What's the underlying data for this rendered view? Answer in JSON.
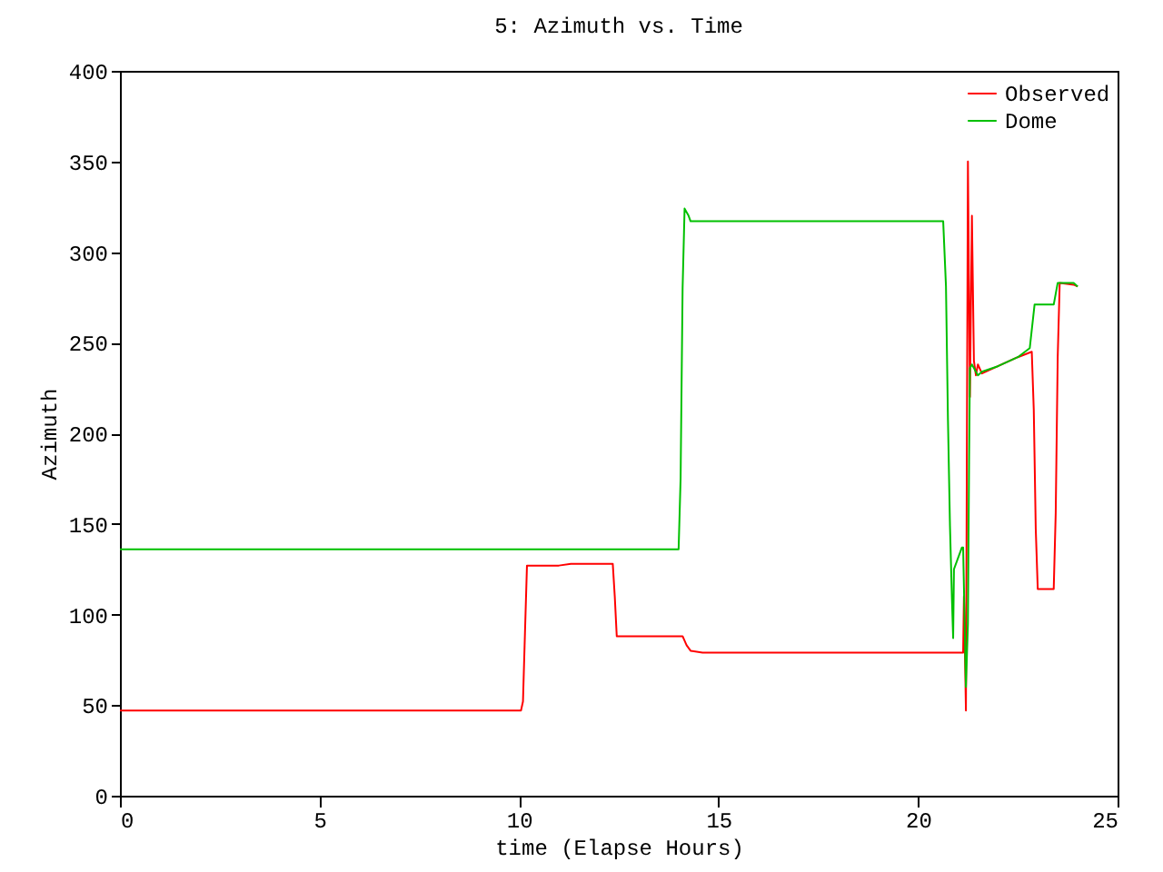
{
  "chart_data": {
    "type": "line",
    "title": "5: Azimuth vs. Time",
    "xlabel": "time (Elapse Hours)",
    "ylabel": "Azimuth",
    "xlim": [
      0,
      25
    ],
    "ylim": [
      0,
      400
    ],
    "xticks": [
      0,
      5,
      10,
      15,
      20,
      25
    ],
    "yticks": [
      0,
      50,
      100,
      150,
      200,
      250,
      300,
      350,
      400
    ],
    "grid": false,
    "legend": "top right",
    "marker": "none",
    "line_style": "solid",
    "series": [
      {
        "name": "Observed",
        "color": "#ff0000",
        "x": [
          0,
          10.05,
          10.1,
          10.15,
          10.2,
          11.0,
          11.3,
          12.35,
          12.4,
          12.45,
          14.1,
          14.2,
          14.3,
          14.6,
          20.7,
          21.13,
          21.15,
          21.2,
          21.25,
          21.3,
          21.35,
          21.4,
          21.45,
          21.5,
          21.6,
          22.0,
          22.5,
          22.85,
          22.9,
          22.95,
          23.0,
          23.4,
          23.45,
          23.5,
          23.55,
          23.9,
          24.0
        ],
        "values": [
          47,
          47,
          52,
          90,
          127,
          127,
          128,
          128,
          110,
          88,
          88,
          83,
          80,
          79,
          79,
          79,
          110,
          47,
          350,
          220,
          320,
          240,
          232,
          238,
          233,
          237,
          242,
          245,
          213,
          147,
          114,
          114,
          156,
          242,
          283,
          282,
          281
        ]
      },
      {
        "name": "Dome",
        "color": "#00c000",
        "x": [
          0,
          14.0,
          14.05,
          14.1,
          14.15,
          14.25,
          14.3,
          20.63,
          20.7,
          20.75,
          20.8,
          20.85,
          20.88,
          20.9,
          21.1,
          21.13,
          21.2,
          21.25,
          21.28,
          21.3,
          21.35,
          21.5,
          21.6,
          22.0,
          22.5,
          22.8,
          22.92,
          23.4,
          23.5,
          23.9,
          24.0
        ],
        "values": [
          136,
          136,
          175,
          280,
          324,
          320,
          317,
          317,
          281,
          207,
          149,
          108,
          87,
          125,
          137,
          137,
          60,
          95,
          188,
          236,
          238,
          232,
          234,
          237,
          242,
          247,
          271,
          271,
          283,
          283,
          281
        ]
      }
    ]
  }
}
